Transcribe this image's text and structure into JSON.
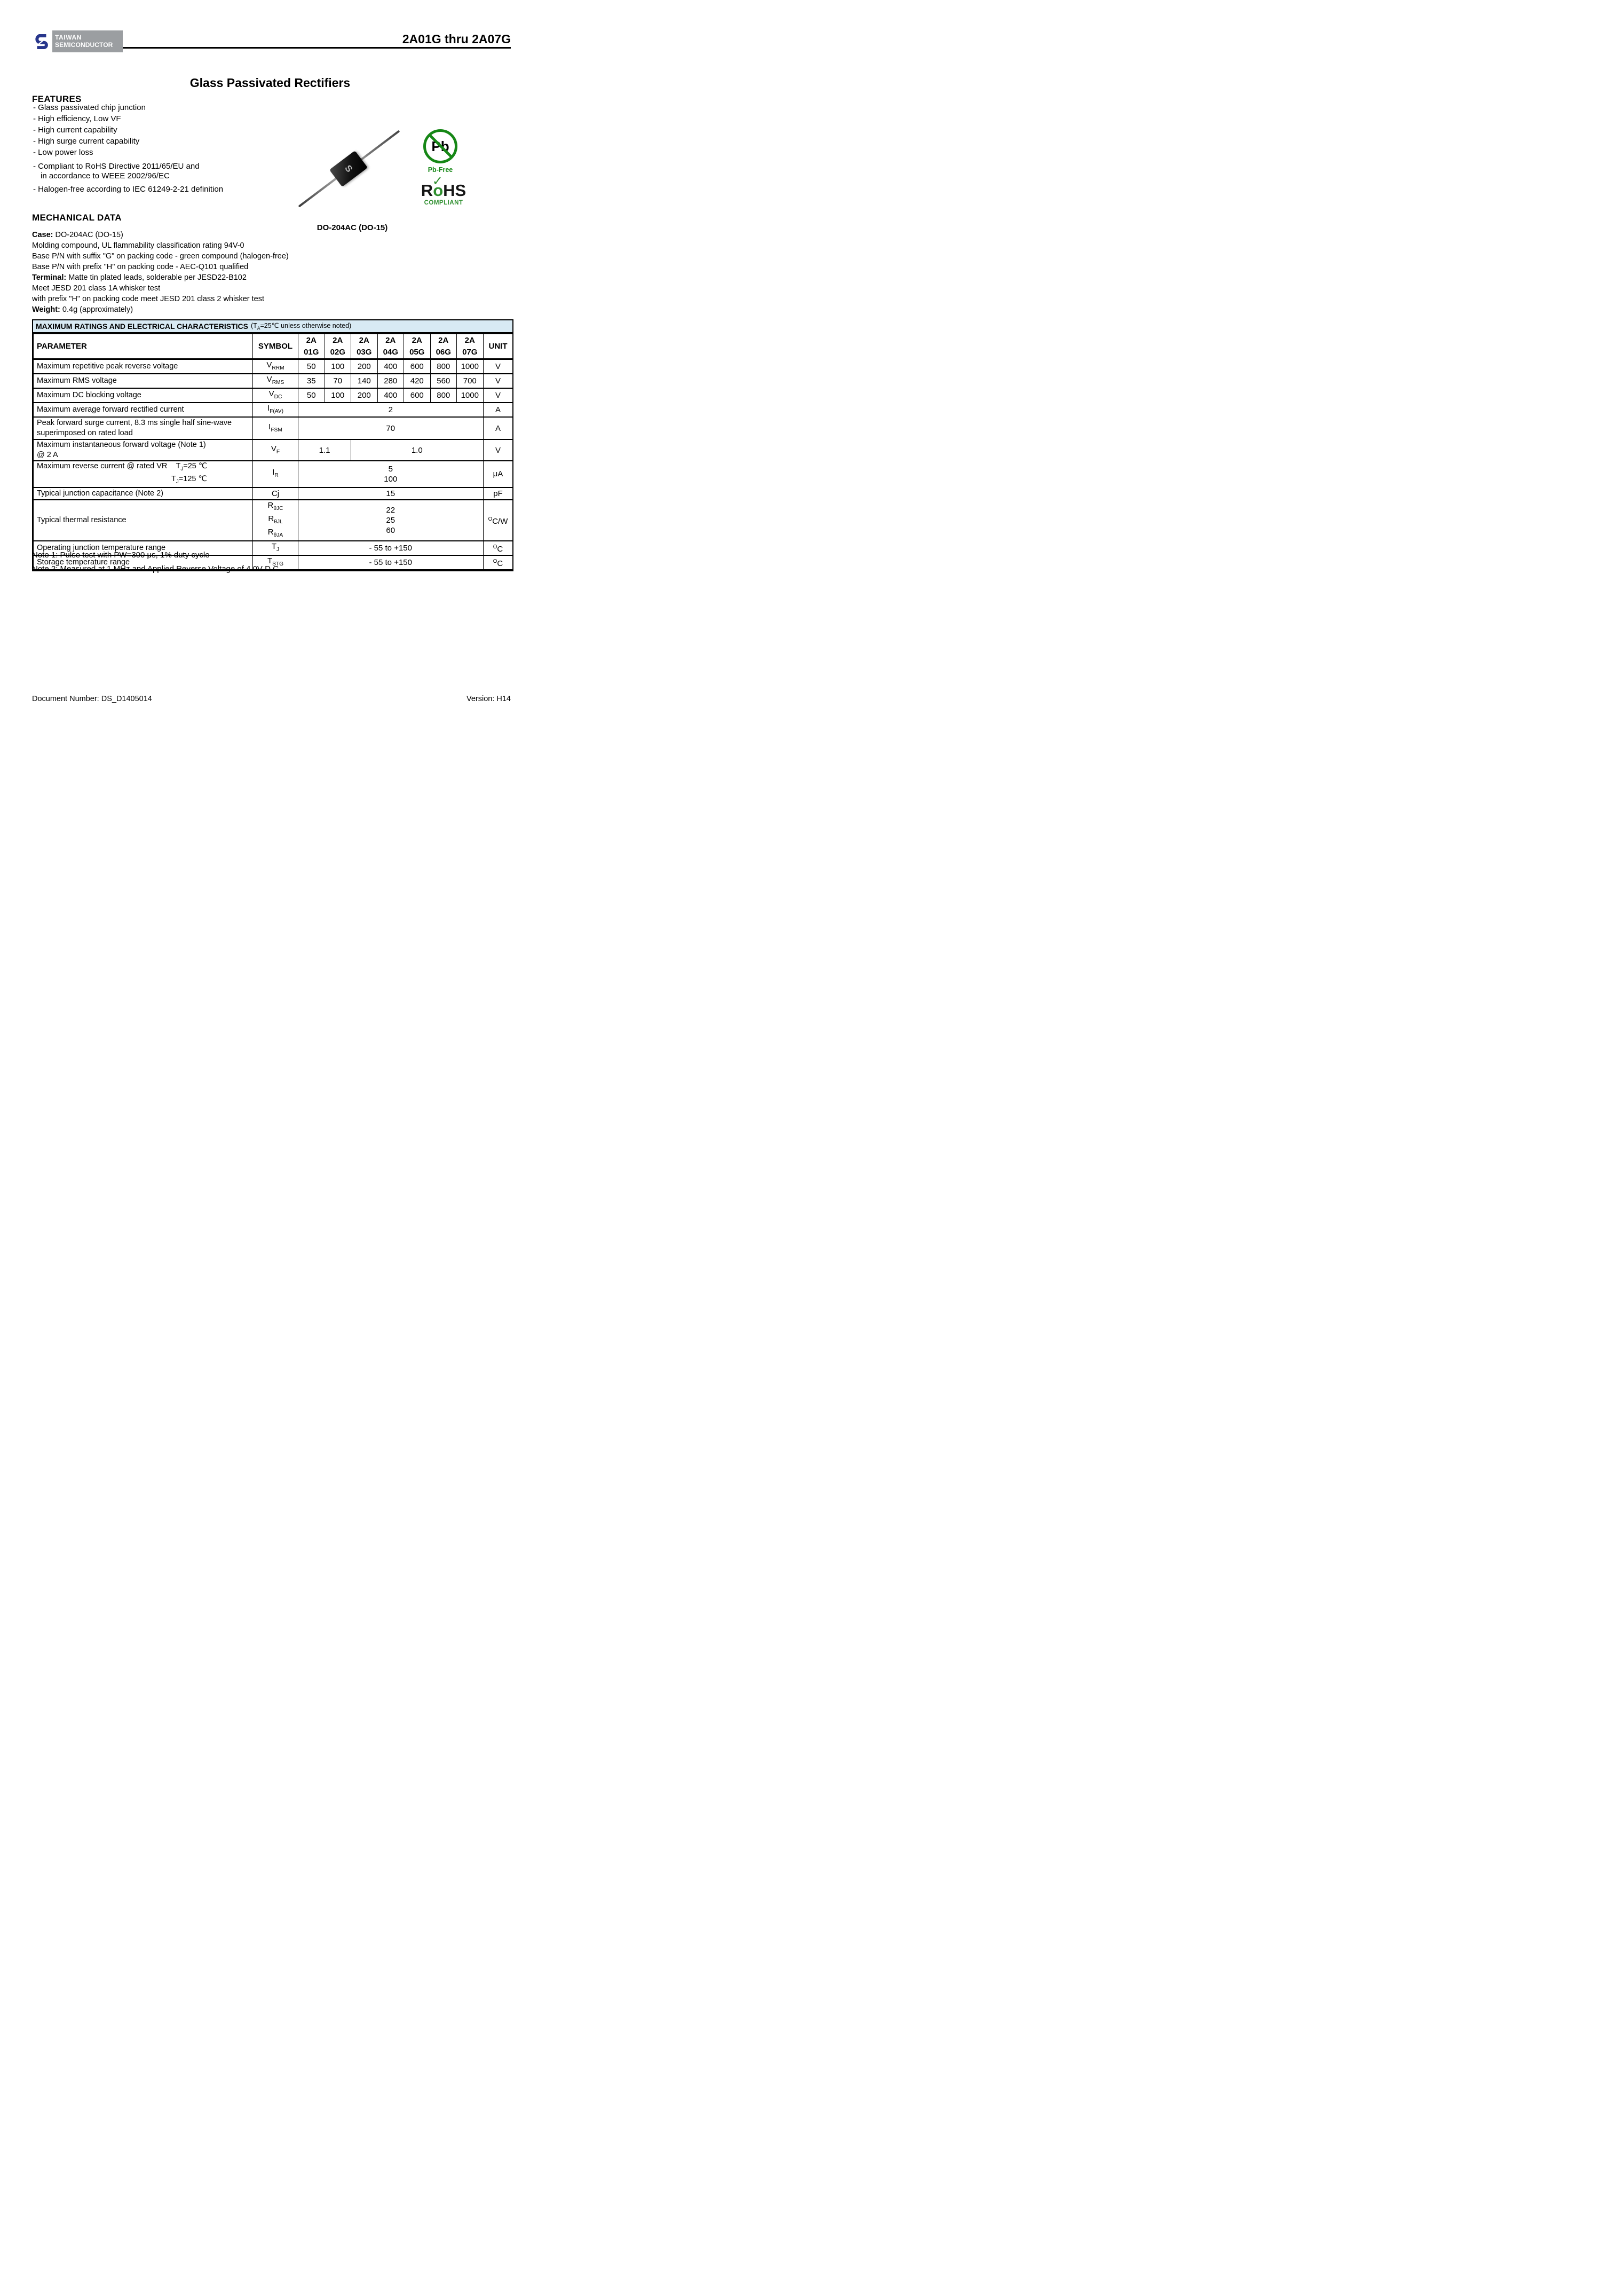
{
  "header": {
    "logo": {
      "line1": "TAIWAN",
      "line2": "SEMICONDUCTOR"
    },
    "part_range": "2A01G thru 2A07G"
  },
  "title": "Glass Passivated Rectifiers",
  "features": {
    "heading": "FEATURES",
    "items": [
      {
        "text": "- Glass passivated chip junction"
      },
      {
        "text": "- High efficiency, Low VF"
      },
      {
        "text": "- High current capability"
      },
      {
        "text": "- High surge current capability"
      },
      {
        "text": "- Low power loss"
      },
      {
        "text": "- Compliant to RoHS Directive 2011/65/EU and"
      },
      {
        "text": "in accordance to WEEE 2002/96/EC",
        "indent": true
      },
      {
        "text": "- Halogen-free according to IEC 61249-2-21 definition"
      }
    ]
  },
  "mechanical": {
    "heading": "MECHANICAL DATA",
    "lines": [
      {
        "b": "Case:",
        "t": " DO-204AC (DO-15)"
      },
      {
        "t": "Molding compound, UL flammability classification rating 94V-0"
      },
      {
        "t": "Base P/N with suffix \"G\" on packing code - green compound (halogen-free)"
      },
      {
        "t": "Base P/N with prefix \"H\" on packing code - AEC-Q101 qualified"
      },
      {
        "b": "Terminal:",
        "t": " Matte tin plated leads, solderable per JESD22-B102"
      },
      {
        "t": "Meet JESD 201 class 1A whisker test"
      },
      {
        "t": "with prefix \"H\" on packing code meet JESD 201 class 2 whisker test"
      },
      {
        "b": "Weight:",
        "t": " 0.4g (approximately)"
      }
    ]
  },
  "package": {
    "label": "DO-204AC (DO-15)",
    "body_mark": "S"
  },
  "badges": {
    "pb_free": {
      "symbol": "Pb",
      "label": "Pb-Free",
      "color": "#168716"
    },
    "rohs": {
      "r": "R",
      "o": "o",
      "hs": "HS",
      "check": "✓",
      "label": "COMPLIANT",
      "color": "#2f8f2f"
    }
  },
  "table": {
    "banner": {
      "bold": "MAXIMUM RATINGS AND ELECTRICAL CHARACTERISTICS",
      "normal": " (T_A_=25℃ unless otherwise noted)",
      "bg": "#d8eaf4"
    },
    "col_param": "PARAMETER",
    "col_symbol": "SYMBOL",
    "col_unit": "UNIT",
    "products": [
      "2A|01G",
      "2A|02G",
      "2A|03G",
      "2A|04G",
      "2A|05G",
      "2A|06G",
      "2A|07G"
    ],
    "rows": [
      {
        "h": 19,
        "param": [
          "Maximum repetitive peak reverse voltage"
        ],
        "symbol": "V_RRM_",
        "cells": [
          [
            "50",
            1
          ],
          [
            "100",
            1
          ],
          [
            "200",
            1
          ],
          [
            "400",
            1
          ],
          [
            "600",
            1
          ],
          [
            "800",
            1
          ],
          [
            "1000",
            1
          ]
        ],
        "unit": "V"
      },
      {
        "h": 20,
        "param": [
          "Maximum RMS voltage"
        ],
        "symbol": "V_RMS_",
        "cells": [
          [
            "35",
            1
          ],
          [
            "70",
            1
          ],
          [
            "140",
            1
          ],
          [
            "280",
            1
          ],
          [
            "420",
            1
          ],
          [
            "560",
            1
          ],
          [
            "700",
            1
          ]
        ],
        "unit": "V"
      },
      {
        "h": 20,
        "param": [
          "Maximum DC blocking voltage"
        ],
        "symbol": "V_DC_",
        "cells": [
          [
            "50",
            1
          ],
          [
            "100",
            1
          ],
          [
            "200",
            1
          ],
          [
            "400",
            1
          ],
          [
            "600",
            1
          ],
          [
            "800",
            1
          ],
          [
            "1000",
            1
          ]
        ],
        "unit": "V"
      },
      {
        "h": 20,
        "param": [
          "Maximum average forward rectified current"
        ],
        "symbol": "I_F(AV)_",
        "cells": [
          [
            "2",
            7
          ]
        ],
        "unit": "A"
      },
      {
        "h": 42,
        "param": [
          "Peak forward surge current, 8.3 ms single half sine-wave",
          "superimposed on rated load"
        ],
        "symbol": "I_FSM_",
        "cells": [
          [
            "70",
            7
          ]
        ],
        "unit": "A"
      },
      {
        "h": 40,
        "param": [
          "Maximum instantaneous forward voltage (Note 1)",
          "@ 2 A"
        ],
        "symbol": "V_F_",
        "cells": [
          [
            "1.1",
            2
          ],
          [
            "1.0",
            5
          ]
        ],
        "unit": "V"
      },
      {
        "h": 40,
        "param": [
          "Maximum reverse current @ rated VR    T_J_=25 ℃",
          {
            "t": "T_J_=125 ℃",
            "ml": 252
          }
        ],
        "symbol": "I_R_",
        "cells": [
          [
            "5\n100",
            7
          ]
        ],
        "unit": "μA"
      },
      {
        "h": 23,
        "param": [
          "Typical junction capacitance (Note 2)"
        ],
        "symbol": "Cj",
        "cells": [
          [
            "15",
            7
          ]
        ],
        "unit": "pF"
      },
      {
        "h": 60,
        "param": [
          "Typical thermal resistance"
        ],
        "symbol": "R_θJC_\nR_θJL_\nR_θJA_",
        "cells": [
          [
            "22\n25\n60",
            7
          ]
        ],
        "unit": "^O^C/W"
      },
      {
        "h": 20,
        "param": [
          "Operating junction temperature range"
        ],
        "symbol": "T_J_",
        "cells": [
          [
            "- 55 to +150",
            7
          ]
        ],
        "unit": "^O^C"
      },
      {
        "h": 20,
        "param": [
          "Storage temperature range"
        ],
        "symbol": "T_STG_",
        "cells": [
          [
            "- 55 to +150",
            7
          ]
        ],
        "unit": "^O^C"
      }
    ],
    "notes": [
      "Note 1: Pulse test with PW=300 μs, 1% duty cycle",
      "Note 2: Measured at 1 MHz and Applied Reverse Voltage of 4.0V D.C."
    ]
  },
  "footer": {
    "left": "Document Number: DS_D1405014",
    "right": "Version: H14"
  }
}
